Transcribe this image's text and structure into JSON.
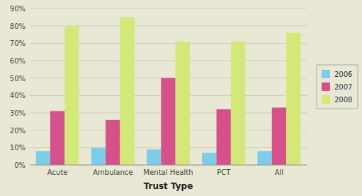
{
  "chart_data": {
    "type": "bar",
    "xlabel": "Trust Type",
    "categories": [
      "Acute",
      "Ambulance",
      "Mental Health",
      "PCT",
      "All"
    ],
    "series": [
      {
        "name": "2006",
        "color": "#7ecde8",
        "values": [
          8,
          10,
          9,
          7,
          8
        ]
      },
      {
        "name": "2007",
        "color": "#d4518a",
        "values": [
          31,
          26,
          50,
          32,
          33
        ]
      },
      {
        "name": "2008",
        "color": "#d4e87a",
        "values": [
          80,
          85,
          71,
          71,
          76
        ]
      }
    ],
    "ylim": [
      0,
      90
    ],
    "yticks": [
      {
        "value": 0,
        "label": "0%"
      },
      {
        "value": 10,
        "label": "10%"
      },
      {
        "value": 20,
        "label": "20%"
      },
      {
        "value": 30,
        "label": "30%"
      },
      {
        "value": 40,
        "label": "40%"
      },
      {
        "value": 50,
        "label": "50%"
      },
      {
        "value": 60,
        "label": "60%"
      },
      {
        "value": 70,
        "label": "70%"
      },
      {
        "value": 80,
        "label": "80%"
      },
      {
        "value": 90,
        "label": "90%"
      }
    ],
    "grid": true,
    "legend": "right"
  }
}
